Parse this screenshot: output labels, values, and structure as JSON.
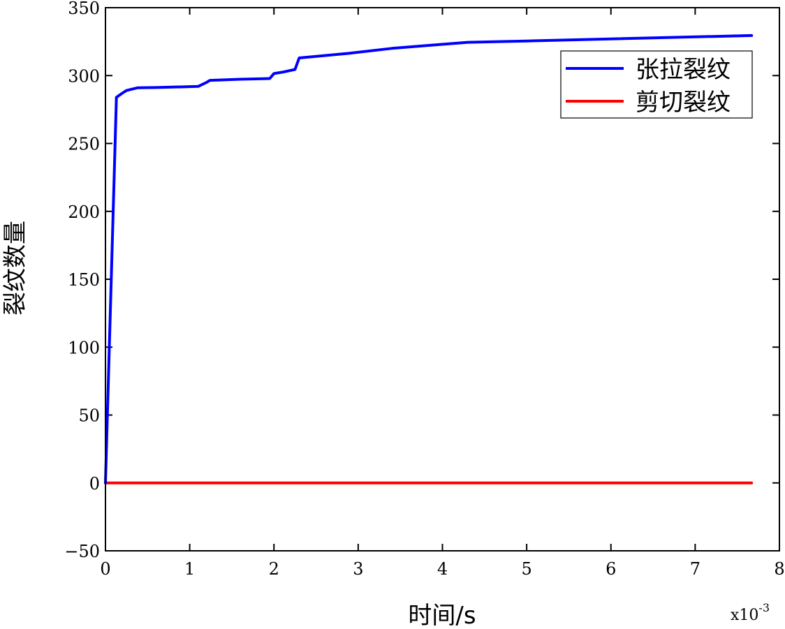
{
  "chart_data": {
    "type": "line",
    "xlabel": "时间/s",
    "ylabel": "裂纹数量",
    "x_multiplier_label": "x10",
    "x_multiplier_exponent": "-3",
    "xlim": [
      0,
      8
    ],
    "ylim": [
      -50,
      350
    ],
    "x_ticks": [
      "0",
      "1",
      "2",
      "3",
      "4",
      "5",
      "6",
      "7",
      "8"
    ],
    "y_ticks": [
      "-50",
      "0",
      "50",
      "100",
      "150",
      "200",
      "250",
      "300",
      "350"
    ],
    "legend_position": "top-right",
    "grid": false,
    "series": [
      {
        "name": "张拉裂纹",
        "color": "#0000ff",
        "points": [
          [
            0,
            0
          ],
          [
            0.13,
            284
          ],
          [
            0.2,
            287
          ],
          [
            0.25,
            289
          ],
          [
            0.38,
            291
          ],
          [
            0.6,
            291.2
          ],
          [
            1.1,
            292
          ],
          [
            1.2,
            295
          ],
          [
            1.24,
            296.5
          ],
          [
            1.6,
            297.3
          ],
          [
            1.95,
            297.8
          ],
          [
            2.0,
            301.5
          ],
          [
            2.1,
            302.5
          ],
          [
            2.25,
            304.5
          ],
          [
            2.3,
            313
          ],
          [
            2.9,
            316.5
          ],
          [
            3.4,
            320
          ],
          [
            4.3,
            324.5
          ],
          [
            5.0,
            325.5
          ],
          [
            6.0,
            327
          ],
          [
            7.67,
            329.5
          ]
        ]
      },
      {
        "name": "剪切裂纹",
        "color": "#ff0000",
        "points": [
          [
            0,
            0
          ],
          [
            7.67,
            0
          ]
        ]
      }
    ]
  }
}
